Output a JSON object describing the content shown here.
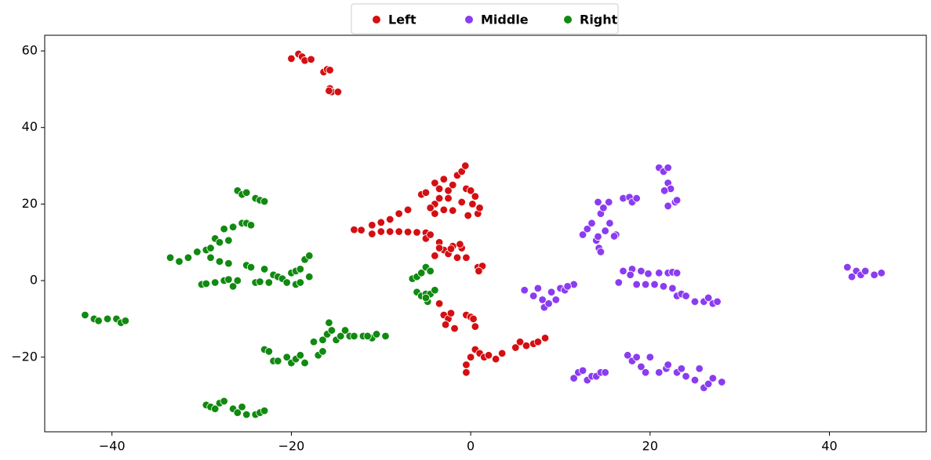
{
  "chart_data": {
    "type": "scatter",
    "xlim": [
      -47.5,
      50.8
    ],
    "ylim": [
      -39.5,
      64.1
    ],
    "xticks": [
      {
        "value": -40,
        "label": "−40"
      },
      {
        "value": -20,
        "label": "−20"
      },
      0,
      20,
      40
    ],
    "yticks": [
      {
        "value": -20,
        "label": "−20"
      },
      0,
      20,
      40,
      60
    ],
    "grid": false,
    "legend": "upper center",
    "series": [
      {
        "name": "Left",
        "color": "#d40f12",
        "x": [
          -20,
          -19.2,
          -18.8,
          -18.5,
          -17.8,
          -16.4,
          -16,
          -15.7,
          -15.7,
          -15.5,
          -14.8,
          -15.8,
          -13,
          -12.2,
          -11,
          -10,
          -9,
          -8,
          -7,
          -6,
          -5,
          -11,
          -10,
          -9,
          -8,
          -7,
          -5,
          -4.5,
          -5.5,
          -5,
          -4,
          -3.5,
          -3,
          -2.5,
          -2,
          -1.5,
          -1,
          -0.6,
          -0.5,
          0,
          0.5,
          0.2,
          0.8,
          1,
          -0.3,
          -2,
          -3,
          -4,
          -4,
          -3.5,
          -2.5,
          -4.5,
          -1,
          -4,
          -3.5,
          -3,
          -2.5,
          -2,
          -1.5,
          -1,
          -0.5,
          -3.5,
          -2.2,
          -1.2,
          0.8,
          1.3,
          0.9,
          -3.5,
          -3,
          -2.5,
          -2.2,
          -2.8,
          -1.8,
          -0.5,
          0,
          0.3,
          0.5,
          -0.5,
          -0.5,
          0,
          0.5,
          1,
          1.5,
          2,
          2.8,
          3.5,
          5,
          5.5,
          6.2,
          7,
          7.5,
          8.3
        ],
        "values": [
          58,
          59.2,
          58.5,
          57.5,
          57.8,
          54.5,
          55.2,
          55,
          50.2,
          49.3,
          49.3,
          49.6,
          13.3,
          13.2,
          12.2,
          12.8,
          12.8,
          12.8,
          12.7,
          12.6,
          12.5,
          14.5,
          15.2,
          16,
          17.5,
          18.5,
          11,
          12,
          22.5,
          23,
          25.5,
          24,
          26.5,
          23.5,
          25,
          27.5,
          28.5,
          30,
          24,
          23.5,
          22,
          20,
          17.5,
          19,
          17,
          18.3,
          18.5,
          17.5,
          20,
          21.5,
          21.5,
          19,
          20.5,
          6.5,
          10,
          8,
          7,
          9,
          6,
          8.5,
          6,
          8.5,
          8.3,
          9.5,
          3.5,
          3.8,
          2.5,
          -6,
          -9,
          -10,
          -8.5,
          -11.5,
          -12.5,
          -9,
          -9.5,
          -10,
          -12,
          -24,
          -22,
          -20,
          -18,
          -19,
          -20,
          -19.5,
          -20.5,
          -19,
          -17.5,
          -16,
          -17,
          -16.5,
          -16,
          -15
        ]
      },
      {
        "name": "Middle",
        "color": "#8b3cf0",
        "x": [
          6,
          7,
          7.5,
          8,
          8.2,
          9,
          9.5,
          10,
          10.5,
          11.5,
          10.8,
          8.7,
          12.5,
          13,
          13.5,
          14,
          14.3,
          14.5,
          14.2,
          15,
          15.5,
          14.5,
          14.8,
          15.4,
          14.2,
          16.2,
          16,
          17,
          17.7,
          18,
          18.5,
          21,
          21.5,
          22,
          22,
          22.3,
          21.6,
          22,
          22.8,
          23,
          16.5,
          17,
          18,
          19,
          19.8,
          21,
          22,
          22.5,
          23,
          17.8,
          18.5,
          19.5,
          20.5,
          21.5,
          22.5,
          23,
          23.5,
          24,
          25,
          26,
          26.5,
          27,
          27.5,
          11.5,
          12,
          12.5,
          13,
          13.5,
          14,
          14.5,
          15,
          17.5,
          18,
          18.5,
          19,
          19.5,
          20,
          21,
          21.8,
          22,
          23,
          23.5,
          24,
          25,
          25.5,
          26,
          26.5,
          27,
          28,
          42,
          42.5,
          43,
          43.5,
          44,
          45,
          45.8
        ],
        "values": [
          -2.5,
          -4,
          -2,
          -5,
          -7,
          -3,
          -5,
          -2,
          -2.5,
          -1,
          -1.5,
          -6,
          12,
          13.5,
          15,
          10.5,
          8.5,
          7.5,
          11.5,
          13,
          15,
          17.5,
          19,
          20.5,
          20.5,
          12,
          11.6,
          21.5,
          21.8,
          20.5,
          21.5,
          29.5,
          28.5,
          29.5,
          25.5,
          24,
          23.5,
          19.5,
          20.5,
          21,
          -0.5,
          2.5,
          3,
          2.5,
          1.8,
          2,
          2,
          2.2,
          2,
          1.5,
          -1,
          -1,
          -1,
          -1.5,
          -2,
          -4,
          -3.5,
          -4,
          -5.5,
          -5.5,
          -4.5,
          -6,
          -5.5,
          -25.5,
          -24,
          -23.5,
          -26,
          -25,
          -25,
          -24,
          -24,
          -19.5,
          -21,
          -20,
          -22.5,
          -24,
          -20,
          -24,
          -23,
          -22,
          -24,
          -23,
          -25,
          -26,
          -23,
          -28,
          -27,
          -25.5,
          -26.5,
          3.5,
          1,
          2.5,
          1.5,
          2.5,
          1.5,
          2
        ]
      },
      {
        "name": "Right",
        "color": "#108a10",
        "x": [
          -43,
          -42,
          -41.5,
          -40.5,
          -39.5,
          -39,
          -38.5,
          -33.5,
          -32.5,
          -31.5,
          -30.5,
          -29.5,
          -28.5,
          -28,
          -27.5,
          -27,
          -26.5,
          -25.5,
          -25,
          -24.5,
          -29,
          -28,
          -27,
          -29,
          -26,
          -25.5,
          -25,
          -24,
          -23.5,
          -23,
          -30,
          -29.5,
          -28.5,
          -27.5,
          -27,
          -26.5,
          -26,
          -25,
          -24.5,
          -24,
          -23.5,
          -23,
          -22.5,
          -22,
          -21.5,
          -21,
          -20.5,
          -20,
          -19.5,
          -19.5,
          -19,
          -19,
          -18.5,
          -18,
          -18,
          -23,
          -22.5,
          -22,
          -21.5,
          -20.5,
          -20,
          -19.5,
          -19,
          -18.5,
          -17.5,
          -17,
          -16.5,
          -16.5,
          -16,
          -15.8,
          -15.5,
          -15,
          -14.5,
          -14,
          -13.5,
          -13,
          -12,
          -11,
          -10.5,
          -9.5,
          -11.5,
          -29.5,
          -29,
          -28.5,
          -28,
          -27.5,
          -26.5,
          -26,
          -25.5,
          -25,
          -24,
          -23.5,
          -23,
          -6.5,
          -6,
          -5.5,
          -5,
          -4.5,
          -6,
          -5.5,
          -5,
          -4.8,
          -4.5,
          -4,
          -5
        ],
        "values": [
          -9,
          -10,
          -10.5,
          -10,
          -10,
          -11,
          -10.5,
          6,
          5,
          6,
          7.5,
          8,
          11,
          10,
          13.5,
          10.5,
          14,
          15,
          15,
          14.5,
          6,
          5,
          4.5,
          8.5,
          23.5,
          22.5,
          23,
          21.5,
          21,
          20.7,
          -1,
          -0.8,
          -0.5,
          0,
          0.3,
          -1.5,
          0,
          4,
          3.5,
          -0.5,
          -0.3,
          3,
          -0.5,
          1.5,
          1,
          0.5,
          -0.5,
          2,
          -1,
          2.5,
          -0.5,
          3,
          5.5,
          6.5,
          1,
          -18,
          -18.5,
          -21,
          -21,
          -20,
          -21.5,
          -20.5,
          -19.5,
          -21.5,
          -16,
          -19.5,
          -18.5,
          -15.5,
          -14,
          -11,
          -13,
          -15.5,
          -14.5,
          -13,
          -14.5,
          -14.5,
          -14.5,
          -15,
          -14,
          -14.5,
          -14.5,
          -32.5,
          -33,
          -33.5,
          -32,
          -31.5,
          -33.5,
          -34.5,
          -33,
          -35,
          -35,
          -34.5,
          -34,
          0.5,
          1,
          2,
          3.5,
          2.5,
          -3,
          -4,
          -3.5,
          -5.5,
          -3.5,
          -2.5,
          -4.5
        ]
      }
    ]
  }
}
